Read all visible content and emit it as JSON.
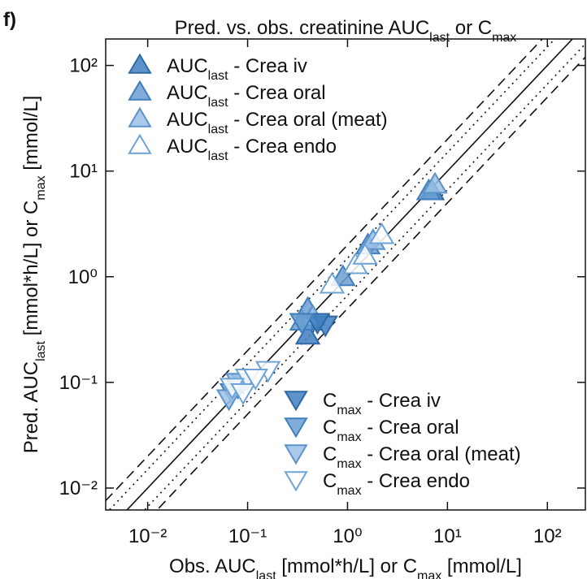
{
  "chart_data": {
    "type": "scatter",
    "panel_label": "f)",
    "title": [
      {
        "text": "Pred. vs. obs. creatinine AUC"
      },
      {
        "text": "last",
        "sub": true
      },
      {
        "text": " or C"
      },
      {
        "text": "max",
        "sub": true
      }
    ],
    "x_label": [
      {
        "text": "Obs. AUC"
      },
      {
        "text": "last",
        "sub": true
      },
      {
        "text": " [mmol*h/L] or C"
      },
      {
        "text": "max",
        "sub": true
      },
      {
        "text": " [mmol/L]"
      }
    ],
    "y_label": [
      {
        "text": "Pred. AUC"
      },
      {
        "text": "last",
        "sub": true
      },
      {
        "text": " [mmol*h/L] or C"
      },
      {
        "text": "max",
        "sub": true
      },
      {
        "text": " [mmol/L]"
      }
    ],
    "log_x": true,
    "log_y": true,
    "xlim": [
      0.0038,
      240
    ],
    "ylim": [
      0.0062,
      178
    ],
    "xticks": [
      {
        "value": 0.01,
        "label": "10⁻²"
      },
      {
        "value": 0.1,
        "label": "10⁻¹"
      },
      {
        "value": 1,
        "label": "10⁰"
      },
      {
        "value": 10,
        "label": "10¹"
      },
      {
        "value": 100,
        "label": "10²"
      }
    ],
    "yticks": [
      {
        "value": 0.01,
        "label": "10⁻²"
      },
      {
        "value": 0.1,
        "label": "10⁻¹"
      },
      {
        "value": 1,
        "label": "10⁰"
      },
      {
        "value": 10,
        "label": "10¹"
      },
      {
        "value": 100,
        "label": "10²"
      }
    ],
    "guide_lines": [
      {
        "factor": 1,
        "style": "solid"
      },
      {
        "factor": 1.5,
        "style": "dotted"
      },
      {
        "factor": 0.6667,
        "style": "dotted"
      },
      {
        "factor": 2,
        "style": "dashed"
      },
      {
        "factor": 0.5,
        "style": "dashed"
      }
    ],
    "legends": [
      {
        "marker": "up",
        "loc": "upper left"
      },
      {
        "marker": "down",
        "loc": "lower right"
      }
    ],
    "series": [
      {
        "name": [
          {
            "text": "AUC"
          },
          {
            "text": "last",
            "sub": true
          },
          {
            "text": " - Crea iv"
          }
        ],
        "marker": "up",
        "color": "#3f7fbf",
        "edge": "#2e69a6",
        "x": [
          0.4,
          0.42,
          7.0
        ],
        "values": [
          0.28,
          0.38,
          6.5
        ]
      },
      {
        "name": [
          {
            "text": "AUC"
          },
          {
            "text": "last",
            "sub": true
          },
          {
            "text": " - Crea oral"
          }
        ],
        "marker": "up",
        "color": "#6b9fd1",
        "edge": "#3f7fbf",
        "x": [
          0.35,
          0.4,
          1.6,
          6.5,
          0.9
        ],
        "values": [
          0.38,
          0.5,
          2.0,
          6.5,
          1.0
        ]
      },
      {
        "name": [
          {
            "text": "AUC"
          },
          {
            "text": "last",
            "sub": true
          },
          {
            "text": " - Crea oral (meat)"
          }
        ],
        "marker": "up",
        "color": "#9cc1e6",
        "edge": "#5b93cb",
        "x": [
          0.45,
          1.8,
          7.5
        ],
        "values": [
          0.42,
          2.2,
          7.5
        ]
      },
      {
        "name": [
          {
            "text": "AUC"
          },
          {
            "text": "last",
            "sub": true
          },
          {
            "text": " - Crea endo"
          }
        ],
        "marker": "up",
        "color": "#ffffff",
        "edge": "#6fa3d6",
        "x": [
          0.7,
          1.2,
          2.2,
          1.5
        ],
        "values": [
          0.85,
          1.3,
          2.5,
          1.6
        ]
      },
      {
        "name": [
          {
            "text": "C"
          },
          {
            "text": "max",
            "sub": true
          },
          {
            "text": " - Crea iv"
          }
        ],
        "marker": "down",
        "color": "#3f7fbf",
        "edge": "#2e69a6",
        "x": [
          0.6,
          0.5
        ],
        "values": [
          0.35,
          0.37
        ]
      },
      {
        "name": [
          {
            "text": "C"
          },
          {
            "text": "max",
            "sub": true
          },
          {
            "text": " - Crea oral"
          }
        ],
        "marker": "down",
        "color": "#6b9fd1",
        "edge": "#3f7fbf",
        "x": [
          0.35,
          0.08,
          0.07
        ],
        "values": [
          0.37,
          0.09,
          0.08
        ]
      },
      {
        "name": [
          {
            "text": "C"
          },
          {
            "text": "max",
            "sub": true
          },
          {
            "text": " - Crea oral (meat)"
          }
        ],
        "marker": "down",
        "color": "#9cc1e6",
        "edge": "#5b93cb",
        "x": [
          0.09,
          0.08,
          0.065
        ],
        "values": [
          0.1,
          0.1,
          0.07
        ]
      },
      {
        "name": [
          {
            "text": "C"
          },
          {
            "text": "max",
            "sub": true
          },
          {
            "text": " - Crea endo"
          }
        ],
        "marker": "down",
        "color": "#ffffff",
        "edge": "#6fa3d6",
        "x": [
          0.16,
          0.1,
          0.07,
          0.09,
          0.12
        ],
        "values": [
          0.13,
          0.11,
          0.09,
          0.08,
          0.11
        ]
      }
    ]
  }
}
